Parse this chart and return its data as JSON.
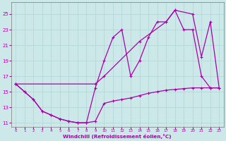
{
  "xlabel": "Windchill (Refroidissement éolien,°C)",
  "xlim": [
    -0.5,
    23.5
  ],
  "ylim": [
    10.5,
    26.5
  ],
  "xticks": [
    0,
    1,
    2,
    3,
    4,
    5,
    6,
    7,
    8,
    9,
    10,
    11,
    12,
    13,
    14,
    15,
    16,
    17,
    18,
    19,
    20,
    21,
    22,
    23
  ],
  "yticks": [
    11,
    13,
    15,
    17,
    19,
    21,
    23,
    25
  ],
  "bg_color": "#cde8e8",
  "line_color": "#aa00aa",
  "grid_color": "#b0d4d4",
  "line1_x": [
    0,
    1,
    2,
    3,
    4,
    5,
    6,
    7,
    8,
    9,
    10,
    11,
    12,
    13,
    14,
    15,
    16,
    17,
    18,
    19,
    20,
    21,
    22,
    23
  ],
  "line1_y": [
    16.0,
    15.0,
    14.0,
    12.5,
    12.0,
    11.5,
    11.2,
    11.0,
    11.0,
    11.2,
    13.5,
    13.8,
    14.0,
    14.2,
    14.5,
    14.8,
    15.0,
    15.2,
    15.3,
    15.4,
    15.5,
    15.5,
    15.5,
    15.5
  ],
  "line2_x": [
    0,
    1,
    2,
    3,
    4,
    5,
    6,
    7,
    8,
    9,
    10,
    11,
    12,
    13,
    14,
    15,
    16,
    17,
    18,
    19,
    20,
    21,
    22,
    23
  ],
  "line2_y": [
    16.0,
    15.0,
    14.0,
    12.5,
    12.0,
    11.5,
    11.2,
    11.0,
    11.0,
    15.5,
    19.0,
    22.0,
    23.0,
    17.0,
    19.0,
    22.0,
    24.0,
    24.0,
    25.5,
    23.0,
    23.0,
    17.0,
    15.5,
    15.5
  ],
  "line3_x": [
    0,
    9,
    10,
    14,
    17,
    18,
    20,
    21,
    22,
    23
  ],
  "line3_y": [
    16.0,
    16.0,
    17.0,
    21.5,
    24.0,
    25.5,
    25.0,
    19.5,
    24.0,
    15.5
  ]
}
